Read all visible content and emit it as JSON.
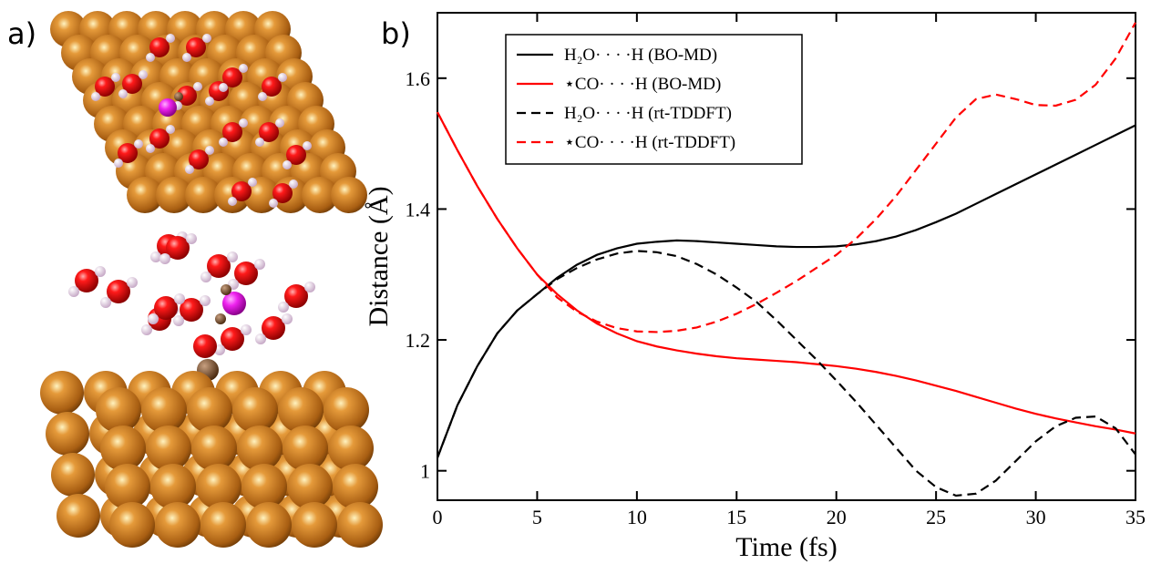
{
  "panel_labels": [
    "a)",
    "b)"
  ],
  "chart_data": {
    "type": "line",
    "xlabel": "Time (fs)",
    "ylabel": "Distance (Å)",
    "x": [
      0,
      1,
      2,
      3,
      4,
      5,
      6,
      7,
      8,
      9,
      10,
      11,
      12,
      13,
      14,
      15,
      16,
      17,
      18,
      19,
      20,
      21,
      22,
      23,
      24,
      25,
      26,
      27,
      28,
      29,
      30,
      31,
      32,
      33,
      34,
      35
    ],
    "xlim": [
      0,
      35
    ],
    "xticks": [
      0,
      5,
      10,
      15,
      20,
      25,
      30,
      35
    ],
    "ylim": [
      0.955,
      1.7
    ],
    "yticks": [
      1,
      1.2,
      1.4,
      1.6
    ],
    "legend": "upper left",
    "series": [
      {
        "name": "H₂O· · · ·H (BO-MD)",
        "color": "#000000",
        "dash": "solid",
        "values": [
          1.02,
          1.1,
          1.16,
          1.21,
          1.245,
          1.27,
          1.295,
          1.315,
          1.33,
          1.34,
          1.347,
          1.35,
          1.352,
          1.351,
          1.349,
          1.347,
          1.345,
          1.343,
          1.342,
          1.342,
          1.343,
          1.346,
          1.351,
          1.358,
          1.368,
          1.38,
          1.393,
          1.408,
          1.423,
          1.438,
          1.453,
          1.468,
          1.483,
          1.498,
          1.513,
          1.528
        ]
      },
      {
        "name": "⋆CO· · · ·H (BO-MD)",
        "color": "#ff0000",
        "dash": "solid",
        "values": [
          1.548,
          1.49,
          1.435,
          1.385,
          1.34,
          1.3,
          1.27,
          1.245,
          1.225,
          1.21,
          1.198,
          1.19,
          1.184,
          1.179,
          1.175,
          1.172,
          1.17,
          1.168,
          1.166,
          1.163,
          1.16,
          1.156,
          1.151,
          1.145,
          1.138,
          1.13,
          1.122,
          1.113,
          1.104,
          1.095,
          1.087,
          1.08,
          1.074,
          1.068,
          1.063,
          1.057
        ]
      },
      {
        "name": "H₂O· · · ·H (rt-TDDFT)",
        "color": "#000000",
        "dash": "dashed",
        "values": [
          1.02,
          1.1,
          1.16,
          1.21,
          1.245,
          1.27,
          1.293,
          1.31,
          1.323,
          1.332,
          1.336,
          1.334,
          1.328,
          1.316,
          1.3,
          1.28,
          1.258,
          1.23,
          1.2,
          1.17,
          1.138,
          1.105,
          1.07,
          1.035,
          1.0,
          0.975,
          0.962,
          0.965,
          0.985,
          1.015,
          1.045,
          1.068,
          1.081,
          1.083,
          1.065,
          1.025
        ]
      },
      {
        "name": "⋆CO· · · ·H (rt-TDDFT)",
        "color": "#ff0000",
        "dash": "dashed",
        "values": [
          1.548,
          1.49,
          1.435,
          1.385,
          1.34,
          1.3,
          1.265,
          1.243,
          1.228,
          1.218,
          1.213,
          1.212,
          1.214,
          1.219,
          1.228,
          1.24,
          1.255,
          1.272,
          1.29,
          1.31,
          1.33,
          1.355,
          1.385,
          1.42,
          1.46,
          1.5,
          1.54,
          1.568,
          1.575,
          1.568,
          1.559,
          1.558,
          1.567,
          1.59,
          1.63,
          1.685
        ]
      }
    ]
  }
}
